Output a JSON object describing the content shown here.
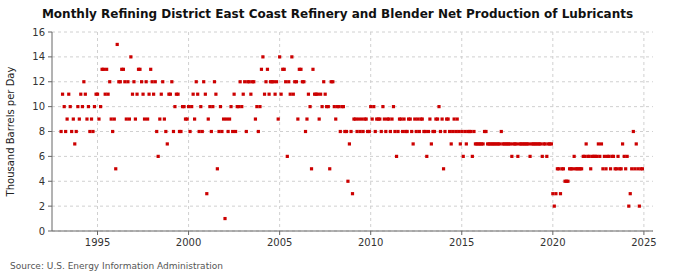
{
  "chart_data": {
    "type": "scatter",
    "title": "Monthly Refining District East Coast Refinery and Blender Net Production of Lubricants",
    "ylabel": "Thousand Barrels per Day",
    "source": "Source: U.S. Energy Information Administration",
    "color": "#cc0000",
    "marker": "square",
    "grid": true,
    "xlim": [
      1992.5,
      2025.5
    ],
    "ylim": [
      0,
      16
    ],
    "xticks": [
      1995,
      2000,
      2005,
      2010,
      2015,
      2020,
      2025
    ],
    "yticks": [
      0,
      2,
      4,
      6,
      8,
      10,
      12,
      14,
      16
    ],
    "x": [
      1993.0,
      1993.08,
      1993.17,
      1993.25,
      1993.33,
      1993.42,
      1993.5,
      1993.58,
      1993.67,
      1993.75,
      1993.83,
      1993.92,
      1994.0,
      1994.08,
      1994.17,
      1994.25,
      1994.33,
      1994.42,
      1994.5,
      1994.58,
      1994.67,
      1994.75,
      1994.83,
      1994.92,
      1995.0,
      1995.08,
      1995.17,
      1995.25,
      1995.33,
      1995.42,
      1995.5,
      1995.58,
      1995.67,
      1995.75,
      1995.83,
      1995.92,
      1996.0,
      1996.08,
      1996.17,
      1996.25,
      1996.33,
      1996.42,
      1996.5,
      1996.58,
      1996.67,
      1996.75,
      1996.83,
      1996.92,
      1997.0,
      1997.08,
      1997.17,
      1997.25,
      1997.33,
      1997.42,
      1997.5,
      1997.58,
      1997.67,
      1997.75,
      1997.83,
      1997.92,
      1998.0,
      1998.08,
      1998.17,
      1998.25,
      1998.33,
      1998.42,
      1998.5,
      1998.58,
      1998.67,
      1998.75,
      1998.83,
      1998.92,
      1999.0,
      1999.08,
      1999.17,
      1999.25,
      1999.33,
      1999.42,
      1999.5,
      1999.58,
      1999.67,
      1999.75,
      1999.83,
      1999.92,
      2000.0,
      2000.08,
      2000.17,
      2000.25,
      2000.33,
      2000.42,
      2000.5,
      2000.58,
      2000.67,
      2000.75,
      2000.83,
      2000.92,
      2001.0,
      2001.08,
      2001.17,
      2001.25,
      2001.33,
      2001.42,
      2001.5,
      2001.58,
      2001.67,
      2001.75,
      2001.83,
      2001.92,
      2002.0,
      2002.08,
      2002.17,
      2002.25,
      2002.33,
      2002.42,
      2002.5,
      2002.58,
      2002.67,
      2002.75,
      2002.83,
      2002.92,
      2003.0,
      2003.08,
      2003.17,
      2003.25,
      2003.33,
      2003.42,
      2003.5,
      2003.58,
      2003.67,
      2003.75,
      2003.83,
      2003.92,
      2004.0,
      2004.08,
      2004.17,
      2004.25,
      2004.33,
      2004.42,
      2004.5,
      2004.58,
      2004.67,
      2004.75,
      2004.83,
      2004.92,
      2005.0,
      2005.08,
      2005.17,
      2005.25,
      2005.33,
      2005.42,
      2005.5,
      2005.58,
      2005.67,
      2005.75,
      2005.83,
      2005.92,
      2006.0,
      2006.08,
      2006.17,
      2006.25,
      2006.33,
      2006.42,
      2006.5,
      2006.58,
      2006.67,
      2006.75,
      2006.83,
      2006.92,
      2007.0,
      2007.08,
      2007.17,
      2007.25,
      2007.33,
      2007.42,
      2007.5,
      2007.58,
      2007.67,
      2007.75,
      2007.83,
      2007.92,
      2008.0,
      2008.08,
      2008.17,
      2008.25,
      2008.33,
      2008.42,
      2008.5,
      2008.58,
      2008.67,
      2008.75,
      2008.83,
      2008.92,
      2009.0,
      2009.08,
      2009.17,
      2009.25,
      2009.33,
      2009.42,
      2009.5,
      2009.58,
      2009.67,
      2009.75,
      2009.83,
      2009.92,
      2010.0,
      2010.08,
      2010.17,
      2010.25,
      2010.33,
      2010.42,
      2010.5,
      2010.58,
      2010.67,
      2010.75,
      2010.83,
      2010.92,
      2011.0,
      2011.08,
      2011.17,
      2011.25,
      2011.33,
      2011.42,
      2011.5,
      2011.58,
      2011.67,
      2011.75,
      2011.83,
      2011.92,
      2012.0,
      2012.08,
      2012.17,
      2012.25,
      2012.33,
      2012.42,
      2012.5,
      2012.58,
      2012.67,
      2012.75,
      2012.83,
      2012.92,
      2013.0,
      2013.08,
      2013.17,
      2013.25,
      2013.33,
      2013.42,
      2013.5,
      2013.58,
      2013.67,
      2013.75,
      2013.83,
      2013.92,
      2014.0,
      2014.08,
      2014.17,
      2014.25,
      2014.33,
      2014.42,
      2014.5,
      2014.58,
      2014.67,
      2014.75,
      2014.83,
      2014.92,
      2015.0,
      2015.08,
      2015.17,
      2015.25,
      2015.33,
      2015.42,
      2015.5,
      2015.58,
      2015.67,
      2015.75,
      2015.83,
      2015.92,
      2016.0,
      2016.08,
      2016.17,
      2016.25,
      2016.33,
      2016.42,
      2016.5,
      2016.58,
      2016.67,
      2016.75,
      2016.83,
      2016.92,
      2017.0,
      2017.08,
      2017.17,
      2017.25,
      2017.33,
      2017.42,
      2017.5,
      2017.58,
      2017.67,
      2017.75,
      2017.83,
      2017.92,
      2018.0,
      2018.08,
      2018.17,
      2018.25,
      2018.33,
      2018.42,
      2018.5,
      2018.58,
      2018.67,
      2018.75,
      2018.83,
      2018.92,
      2019.0,
      2019.08,
      2019.17,
      2019.25,
      2019.33,
      2019.42,
      2019.5,
      2019.58,
      2019.67,
      2019.75,
      2019.83,
      2019.92,
      2020.0,
      2020.08,
      2020.17,
      2020.25,
      2020.33,
      2020.42,
      2020.5,
      2020.58,
      2020.67,
      2020.75,
      2020.83,
      2020.92,
      2021.0,
      2021.08,
      2021.17,
      2021.25,
      2021.33,
      2021.42,
      2021.5,
      2021.58,
      2021.67,
      2021.75,
      2021.83,
      2021.92,
      2022.0,
      2022.08,
      2022.17,
      2022.25,
      2022.33,
      2022.42,
      2022.5,
      2022.58,
      2022.67,
      2022.75,
      2022.83,
      2022.92,
      2023.0,
      2023.08,
      2023.17,
      2023.25,
      2023.33,
      2023.42,
      2023.5,
      2023.58,
      2023.67,
      2023.75,
      2023.83,
      2023.92,
      2024.0,
      2024.08,
      2024.17,
      2024.25,
      2024.33,
      2024.42,
      2024.5,
      2024.58,
      2024.67,
      2024.75,
      2024.83,
      2024.92
    ],
    "values": [
      8,
      11,
      10,
      8,
      9,
      11,
      10,
      8,
      9,
      7,
      8,
      10,
      9,
      11,
      10,
      12,
      11,
      9,
      10,
      8,
      9,
      8,
      10,
      11,
      11,
      9,
      10,
      13,
      13,
      11,
      13,
      11,
      12,
      9,
      8,
      9,
      5,
      15,
      12,
      12,
      13,
      13,
      12,
      9,
      12,
      9,
      14,
      11,
      12,
      9,
      11,
      13,
      13,
      12,
      11,
      9,
      12,
      9,
      11,
      13,
      12,
      11,
      12,
      8,
      6,
      9,
      11,
      12,
      9,
      8,
      7,
      11,
      11,
      12,
      8,
      10,
      11,
      11,
      8,
      8,
      10,
      10,
      9,
      9,
      10,
      8,
      10,
      11,
      9,
      12,
      11,
      8,
      10,
      8,
      12,
      11,
      3,
      9,
      10,
      8,
      10,
      12,
      11,
      5,
      8,
      10,
      8,
      9,
      1,
      9,
      8,
      9,
      10,
      8,
      11,
      8,
      10,
      10,
      12,
      10,
      11,
      12,
      8,
      12,
      12,
      11,
      12,
      12,
      9,
      10,
      8,
      10,
      13,
      14,
      11,
      12,
      13,
      11,
      12,
      12,
      12,
      11,
      12,
      9,
      14,
      11,
      13,
      13,
      12,
      6,
      12,
      11,
      14,
      11,
      12,
      12,
      9,
      13,
      13,
      12,
      12,
      8,
      9,
      11,
      10,
      5,
      13,
      11,
      11,
      11,
      9,
      11,
      10,
      12,
      11,
      10,
      10,
      5,
      12,
      12,
      10,
      9,
      10,
      10,
      8,
      10,
      10,
      8,
      8,
      4,
      7,
      8,
      3,
      9,
      9,
      8,
      9,
      8,
      9,
      8,
      9,
      9,
      8,
      8,
      10,
      9,
      10,
      8,
      9,
      9,
      9,
      8,
      10,
      9,
      8,
      9,
      9,
      8,
      9,
      10,
      8,
      6,
      8,
      9,
      9,
      8,
      9,
      8,
      8,
      9,
      9,
      8,
      7,
      9,
      8,
      9,
      8,
      9,
      9,
      8,
      8,
      6,
      8,
      9,
      7,
      8,
      8,
      9,
      9,
      10,
      8,
      9,
      5,
      8,
      9,
      9,
      8,
      7,
      8,
      9,
      8,
      9,
      8,
      7,
      8,
      6,
      8,
      7,
      8,
      8,
      8,
      6,
      8,
      7,
      7,
      7,
      7,
      7,
      7,
      8,
      8,
      7,
      7,
      7,
      7,
      7,
      7,
      7,
      7,
      7,
      8,
      7,
      7,
      7,
      7,
      7,
      7,
      6,
      7,
      7,
      7,
      6,
      7,
      7,
      7,
      7,
      7,
      7,
      7,
      6,
      7,
      7,
      7,
      7,
      7,
      7,
      7,
      6,
      7,
      7,
      6,
      7,
      7,
      7,
      3,
      2,
      3,
      5,
      5,
      3,
      5,
      5,
      4,
      4,
      4,
      5,
      5,
      5,
      6,
      5,
      5,
      5,
      5,
      5,
      6,
      6,
      7,
      6,
      6,
      5,
      6,
      6,
      6,
      6,
      7,
      6,
      7,
      5,
      6,
      5,
      6,
      6,
      5,
      6,
      6,
      5,
      5,
      6,
      5,
      5,
      7,
      6,
      5,
      6,
      2,
      3,
      5,
      8,
      5,
      7,
      5,
      2,
      5,
      5
    ]
  }
}
